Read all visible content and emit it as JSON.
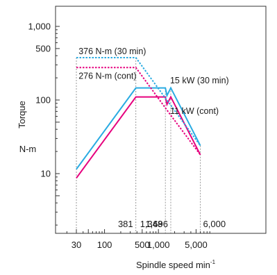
{
  "chart_data": {
    "type": "line",
    "xscale": "log",
    "yscale": "log",
    "xlabel": "Spindle speed min",
    "xlabel_sup": "-1",
    "ylabel": "Torque",
    "yunit": "N-m",
    "xlim": [
      20,
      7000
    ],
    "ylim": [
      3,
      1500
    ],
    "x_ticks": [
      {
        "value": 30,
        "label": "30"
      },
      {
        "value": 100,
        "label": "100"
      },
      {
        "value": 500,
        "label": "500"
      },
      {
        "value": 1000,
        "label": "1,000"
      },
      {
        "value": 5000,
        "label": "5,000"
      }
    ],
    "y_ticks": [
      {
        "value": 10,
        "label": "10"
      },
      {
        "value": 100,
        "label": "100"
      },
      {
        "value": 500,
        "label": "500"
      },
      {
        "value": 1000,
        "label": "1,000"
      }
    ],
    "series": [
      {
        "name": "",
        "color": "#29abe2",
        "style": "solid",
        "points": [
          [
            30,
            11.5
          ],
          [
            381,
            146
          ],
          [
            1348,
            146
          ],
          [
            1440,
            115
          ],
          [
            1696,
            146
          ],
          [
            6000,
            24
          ]
        ]
      },
      {
        "name": "",
        "color": "#e6007e",
        "style": "solid",
        "points": [
          [
            30,
            8.7
          ],
          [
            381,
            110
          ],
          [
            1348,
            110
          ],
          [
            1440,
            87
          ],
          [
            1696,
            110
          ],
          [
            6000,
            18
          ]
        ]
      },
      {
        "name": "",
        "color": "#29abe2",
        "style": "dotted",
        "points": [
          [
            30,
            376
          ],
          [
            381,
            376
          ],
          [
            1348,
            106
          ],
          [
            1696,
            85
          ],
          [
            6000,
            24
          ]
        ]
      },
      {
        "name": "",
        "color": "#e6007e",
        "style": "dotted",
        "points": [
          [
            30,
            276
          ],
          [
            381,
            276
          ],
          [
            1348,
            78
          ],
          [
            1696,
            62
          ],
          [
            6000,
            18
          ]
        ]
      }
    ],
    "speed_markers": [
      {
        "value": 30,
        "label": ""
      },
      {
        "value": 381,
        "label": "381"
      },
      {
        "value": 1348,
        "label": "1,348"
      },
      {
        "value": 1696,
        "label": "1,696"
      },
      {
        "value": 6000,
        "label": "6,000"
      }
    ],
    "annotations": [
      {
        "text": "376 N-m (30 min)",
        "x": 33,
        "y": 376,
        "color": "#29abe2"
      },
      {
        "text": "276 N-m (cont)",
        "x": 33,
        "y": 276,
        "color": "#e6007e"
      },
      {
        "text": "15 kW (30 min)",
        "x": 1550,
        "y": 148,
        "color": "#29abe2"
      },
      {
        "text": "11 kW (cont)",
        "x": 1560,
        "y": 84,
        "color": "#e6007e"
      }
    ]
  }
}
